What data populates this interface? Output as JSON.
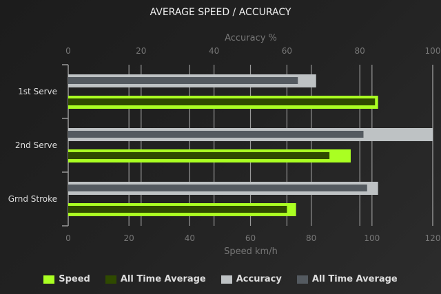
{
  "chart_data": {
    "type": "bar",
    "orientation": "horizontal",
    "title": "AVERAGE SPEED / ACCURACY",
    "categories": [
      "1st Serve",
      "2nd Serve",
      "Grnd Stroke"
    ],
    "x_bottom": {
      "label": "Speed km/h",
      "range": [
        0,
        120
      ],
      "ticks": [
        0,
        20,
        40,
        60,
        80,
        100,
        120
      ]
    },
    "x_top": {
      "label": "Accuracy %",
      "range": [
        0,
        100
      ],
      "ticks": [
        0,
        20,
        40,
        60,
        80,
        100
      ]
    },
    "grid": true,
    "legend_placement": "bottom",
    "series": [
      {
        "name": "Speed",
        "axis": "bottom",
        "color": "#aaff22",
        "values": [
          102,
          93,
          75
        ]
      },
      {
        "name": "All Time Average",
        "axis": "bottom",
        "color": "#2f4a00",
        "values": [
          101,
          86,
          72
        ]
      },
      {
        "name": "Accuracy",
        "axis": "top",
        "color": "#bec2c4",
        "values": [
          68,
          100,
          85
        ]
      },
      {
        "name": "All Time Average",
        "axis": "top",
        "color": "#545a60",
        "values": [
          63,
          81,
          82
        ]
      }
    ]
  }
}
